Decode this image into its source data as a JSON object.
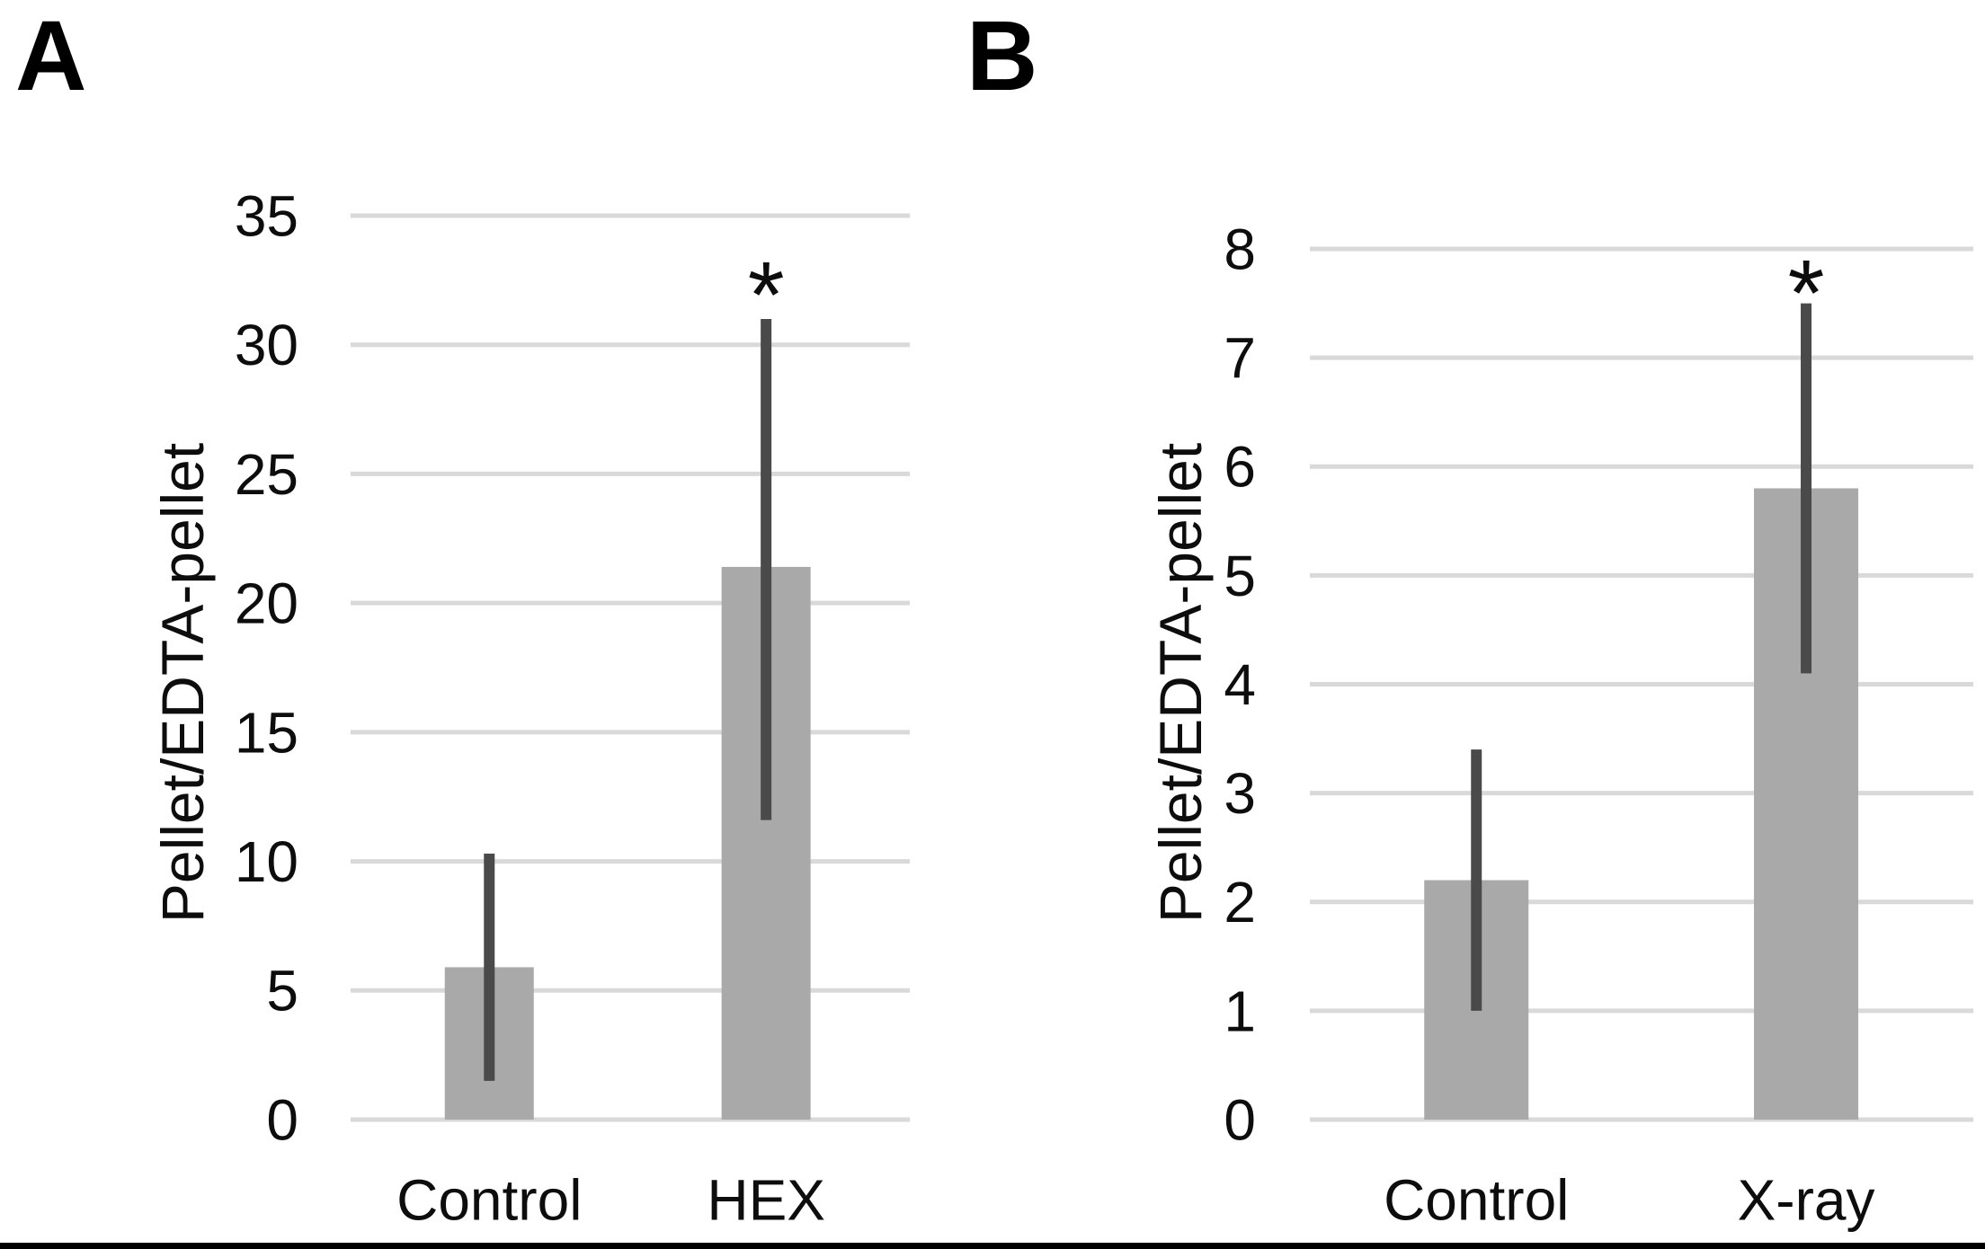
{
  "figure": {
    "background_color": "#ffffff",
    "bottom_border_color": "#000000",
    "text_color": "#0d0d0d"
  },
  "chart_data": [
    {
      "type": "bar",
      "panel": "A",
      "title": "",
      "xlabel": "",
      "ylabel": "Pellet/EDTA-pellet",
      "categories": [
        "Control",
        "HEX"
      ],
      "values": [
        5.9,
        21.4
      ],
      "error_low": [
        1.5,
        11.6
      ],
      "error_high": [
        10.3,
        31.0
      ],
      "significance": [
        "",
        "*"
      ],
      "sig_values": [
        null,
        32.8
      ],
      "ylim": [
        0,
        35
      ],
      "ytick_step": 5,
      "ytick_labels": [
        "0",
        "5",
        "10",
        "15",
        "20",
        "25",
        "30",
        "35"
      ],
      "grid": true,
      "legend": false,
      "bar_color": "#a9a9a9",
      "error_color": "#4a4a4a",
      "grid_color": "#d9d9d9"
    },
    {
      "type": "bar",
      "panel": "B",
      "title": "",
      "xlabel": "",
      "ylabel": "Pellet/EDTA-pellet",
      "categories": [
        "Control",
        "X-ray"
      ],
      "values": [
        2.2,
        5.8
      ],
      "error_low": [
        1.0,
        4.1
      ],
      "error_high": [
        3.4,
        7.5
      ],
      "significance": [
        "",
        "*"
      ],
      "sig_values": [
        null,
        7.8
      ],
      "ylim": [
        0,
        8
      ],
      "ytick_step": 1,
      "ytick_labels": [
        "0",
        "1",
        "2",
        "3",
        "4",
        "5",
        "6",
        "7",
        "8"
      ],
      "grid": true,
      "legend": false,
      "bar_color": "#a9a9a9",
      "error_color": "#4a4a4a",
      "grid_color": "#d9d9d9"
    }
  ]
}
